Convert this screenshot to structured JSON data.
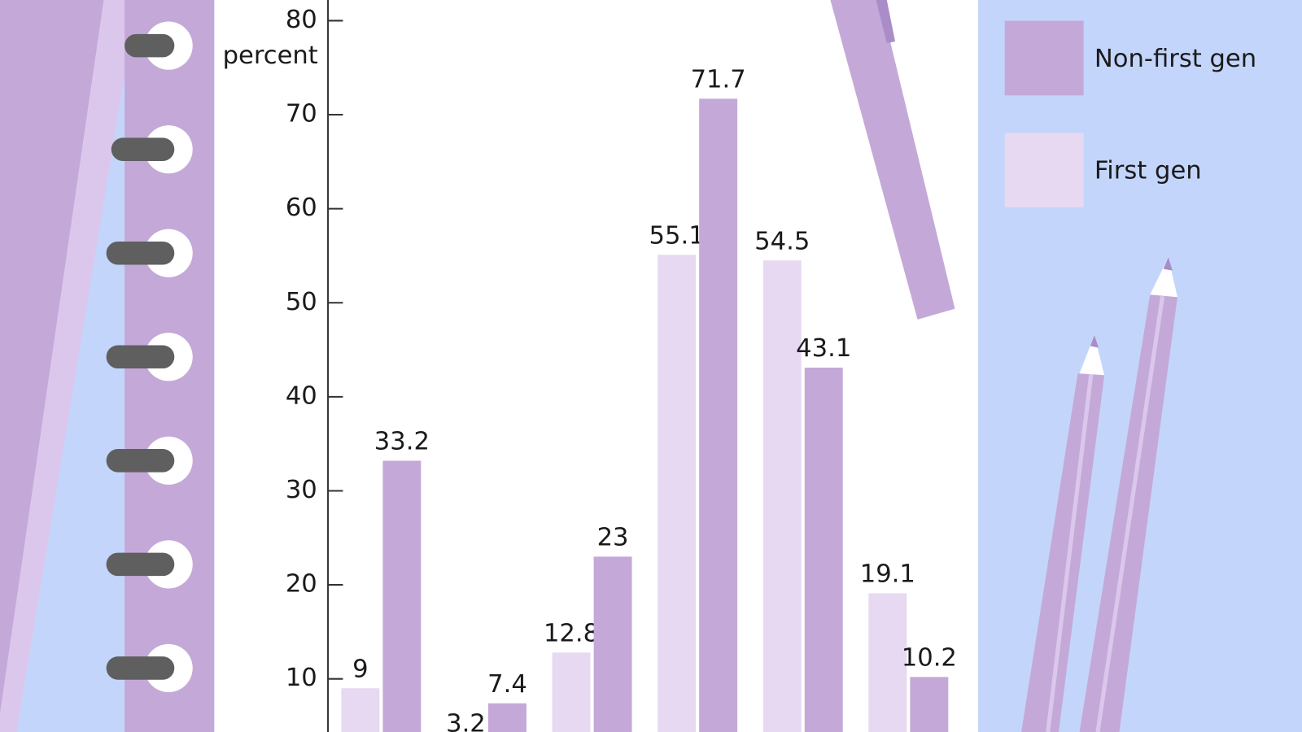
{
  "chart_data": {
    "type": "bar",
    "y_label": "percent",
    "categories": [
      null,
      null,
      null,
      null,
      null,
      null
    ],
    "series": [
      {
        "name": "First gen",
        "color": "#e6d9f1",
        "values": [
          9,
          3.2,
          12.8,
          55.1,
          54.5,
          19.1
        ]
      },
      {
        "name": "Non-first gen",
        "color": "#c4a9d8",
        "values": [
          33.2,
          7.4,
          23,
          71.7,
          43.1,
          10.2
        ]
      }
    ],
    "ylim": [
      4.35,
      82.2
    ],
    "yticks": [
      10,
      20,
      30,
      40,
      50,
      60,
      70,
      80
    ],
    "legend": "right"
  }
}
